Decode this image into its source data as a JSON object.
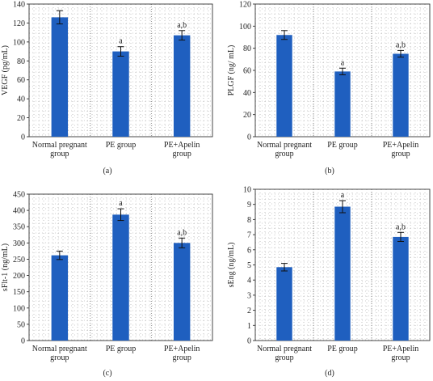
{
  "chart_data": [
    {
      "type": "bar",
      "panel_label": "(a)",
      "ylabel": "VEGF (pg/mL)",
      "ylim": [
        0,
        140
      ],
      "yticks": [
        0,
        20,
        40,
        60,
        80,
        100,
        120,
        140
      ],
      "categories": [
        [
          "Normal pregnant",
          "group"
        ],
        [
          "PE group"
        ],
        [
          "PE+Apelin",
          "group"
        ]
      ],
      "values": [
        126,
        90,
        107
      ],
      "errors": [
        7,
        5,
        5
      ],
      "annotations": [
        "",
        "a",
        "a,b"
      ],
      "grid": true,
      "bar_color": "#1f5fbf"
    },
    {
      "type": "bar",
      "panel_label": "(b)",
      "ylabel": "PLGF (ng/ mL)",
      "ylim": [
        0,
        120
      ],
      "yticks": [
        0,
        20,
        40,
        60,
        80,
        100,
        120
      ],
      "categories": [
        [
          "Normal pregnant",
          "group"
        ],
        [
          "PE group"
        ],
        [
          "PE+Apelin",
          "group"
        ]
      ],
      "values": [
        92,
        59,
        75
      ],
      "errors": [
        4,
        3,
        3
      ],
      "annotations": [
        "",
        "a",
        "a,b"
      ],
      "grid": true,
      "bar_color": "#1f5fbf"
    },
    {
      "type": "bar",
      "panel_label": "(c)",
      "ylabel": "sFlt-1 (ng/mL)",
      "ylim": [
        0,
        450
      ],
      "yticks": [
        0,
        50,
        100,
        150,
        200,
        250,
        300,
        350,
        400,
        450
      ],
      "categories": [
        [
          "Normal pregnant",
          "group"
        ],
        [
          "PE group"
        ],
        [
          "PE+Apelin",
          "group"
        ]
      ],
      "values": [
        262,
        387,
        300
      ],
      "errors": [
        13,
        18,
        15
      ],
      "annotations": [
        "",
        "a",
        "a,b"
      ],
      "grid": true,
      "bar_color": "#1f5fbf"
    },
    {
      "type": "bar",
      "panel_label": "(d)",
      "ylabel": "sEng (ng/mL)",
      "ylim": [
        0,
        10
      ],
      "yticks": [
        0,
        1,
        2,
        3,
        4,
        5,
        6,
        7,
        8,
        9,
        10
      ],
      "categories": [
        [
          "Normal pregnant",
          "group"
        ],
        [
          "PE group"
        ],
        [
          "PE+Apelin",
          "group"
        ]
      ],
      "values": [
        4.85,
        8.85,
        6.85
      ],
      "errors": [
        0.25,
        0.4,
        0.3
      ],
      "annotations": [
        "",
        "a",
        "a,b"
      ],
      "grid": true,
      "bar_color": "#1f5fbf"
    }
  ]
}
